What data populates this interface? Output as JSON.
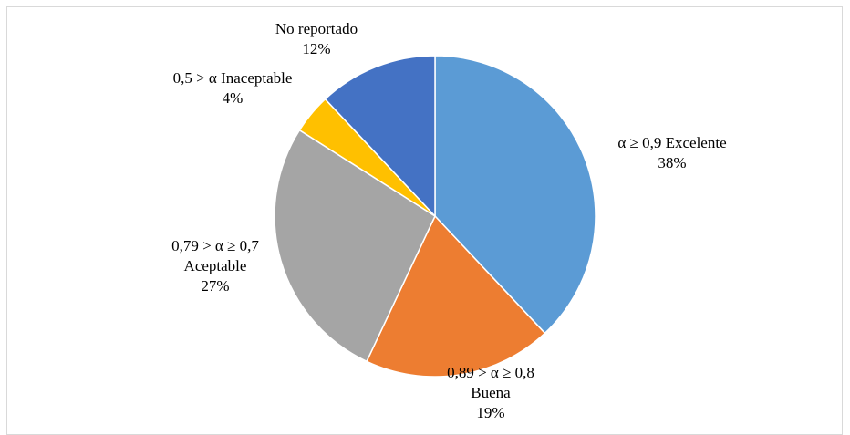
{
  "chart_data": {
    "type": "pie",
    "title": "",
    "start_angle_deg": 0,
    "direction": "clockwise",
    "slices": [
      {
        "label_lines": [
          "α ≥ 0,9  Excelente"
        ],
        "percent_label": "38%",
        "value": 38,
        "color": "#5b9bd5"
      },
      {
        "label_lines": [
          "0,89 > α ≥ 0,8",
          "Buena"
        ],
        "percent_label": "19%",
        "value": 19,
        "color": "#ed7d31"
      },
      {
        "label_lines": [
          "0,79 > α ≥ 0,7",
          "Aceptable"
        ],
        "percent_label": "27%",
        "value": 27,
        "color": "#a5a5a5"
      },
      {
        "label_lines": [
          "0,5 > α Inaceptable"
        ],
        "percent_label": "4%",
        "value": 4,
        "color": "#ffc000"
      },
      {
        "label_lines": [
          "No reportado"
        ],
        "percent_label": "12%",
        "value": 12,
        "color": "#4472c4"
      }
    ],
    "legend": "none",
    "slice_border_color": "#ffffff"
  }
}
